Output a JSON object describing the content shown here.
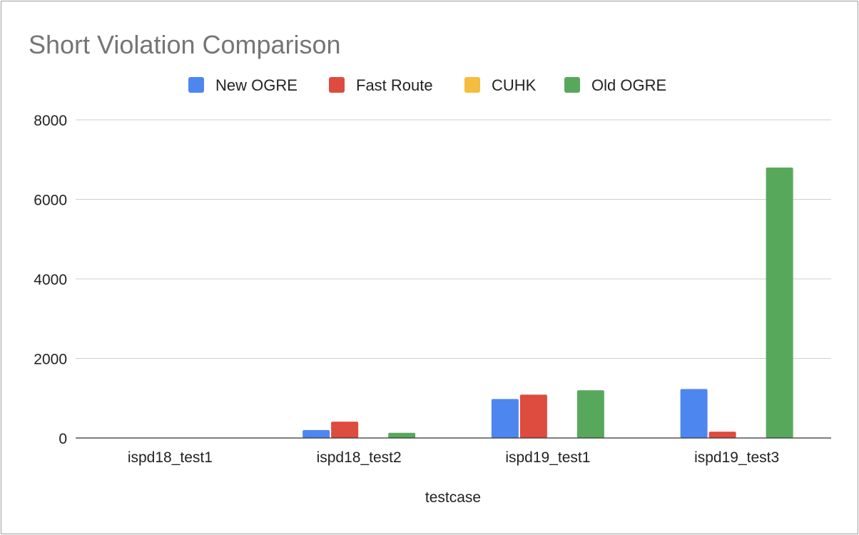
{
  "chart_data": {
    "type": "bar",
    "title": "Short Violation Comparison",
    "xlabel": "testcase",
    "ylabel": "",
    "categories": [
      "ispd18_test1",
      "ispd18_test2",
      "ispd19_test1",
      "ispd19_test3"
    ],
    "series": [
      {
        "name": "New OGRE",
        "color": "#4e86f0",
        "values": [
          0,
          200,
          980,
          1230
        ]
      },
      {
        "name": "Fast Route",
        "color": "#dd4c3e",
        "values": [
          0,
          410,
          1090,
          160
        ]
      },
      {
        "name": "CUHK",
        "color": "#f4bd3d",
        "values": [
          0,
          0,
          0,
          0
        ]
      },
      {
        "name": "Old OGRE",
        "color": "#58a85c",
        "values": [
          0,
          130,
          1200,
          6800
        ]
      }
    ],
    "ylim": [
      0,
      8000
    ],
    "yticks": [
      "0",
      "2000",
      "4000",
      "6000",
      "8000"
    ],
    "ytick_values": [
      0,
      2000,
      4000,
      6000,
      8000
    ],
    "grid": true,
    "legend_position": "top"
  }
}
